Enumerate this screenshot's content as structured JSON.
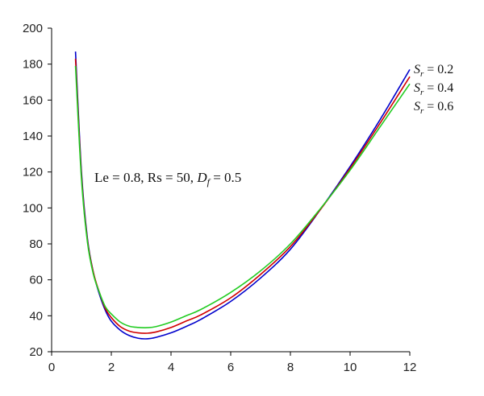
{
  "chart_data": {
    "type": "line",
    "title": "",
    "xlabel": "",
    "ylabel": "",
    "xlim": [
      0,
      12
    ],
    "ylim": [
      20,
      200
    ],
    "xticks": [
      0,
      2,
      4,
      6,
      8,
      10,
      12
    ],
    "yticks": [
      20,
      40,
      60,
      80,
      100,
      120,
      140,
      160,
      180,
      200
    ],
    "grid": false,
    "annotation": {
      "prefix": "Le = 0.8, Rs = 50, ",
      "var": "D",
      "sub": "f",
      "suffix": " = 0.5"
    },
    "series": [
      {
        "name": "Sr = 0.2",
        "label": {
          "var": "S",
          "sub": "r",
          "value": " = 0.2"
        },
        "color": "#0000cc",
        "x": [
          0.8,
          1.0,
          1.2,
          1.4,
          1.6,
          1.8,
          2.0,
          2.3,
          2.6,
          2.9,
          3.2,
          3.5,
          4.0,
          4.5,
          5.0,
          6.0,
          7.0,
          8.0,
          9.0,
          10.0,
          11.0,
          12.0
        ],
        "y": [
          187,
          120,
          83,
          64,
          52,
          43,
          37,
          32,
          29,
          27.5,
          27.2,
          28,
          30.5,
          34,
          38,
          48,
          61,
          77,
          99,
          123,
          149,
          177
        ]
      },
      {
        "name": "Sr = 0.4",
        "label": {
          "var": "S",
          "sub": "r",
          "value": " = 0.4"
        },
        "color": "#d00000",
        "x": [
          0.8,
          1.0,
          1.2,
          1.4,
          1.6,
          1.8,
          2.0,
          2.3,
          2.6,
          2.9,
          3.2,
          3.5,
          4.0,
          4.5,
          5.0,
          6.0,
          7.0,
          8.0,
          9.0,
          10.0,
          11.0,
          12.0
        ],
        "y": [
          183,
          118,
          82,
          64,
          53,
          44,
          39,
          34,
          31.5,
          30.5,
          30.3,
          31,
          33.5,
          37,
          40.5,
          50,
          63,
          78.5,
          99,
          122,
          147,
          173
        ]
      },
      {
        "name": "Sr = 0.6",
        "label": {
          "var": "S",
          "sub": "r",
          "value": " = 0.6"
        },
        "color": "#22cc22",
        "x": [
          0.8,
          1.0,
          1.2,
          1.4,
          1.6,
          1.8,
          2.0,
          2.3,
          2.6,
          2.9,
          3.2,
          3.5,
          4.0,
          4.5,
          5.0,
          6.0,
          7.0,
          8.0,
          9.0,
          10.0,
          11.0,
          12.0
        ],
        "y": [
          179,
          116,
          81,
          63,
          53,
          45,
          41,
          36.5,
          34.2,
          33.5,
          33.4,
          34,
          36.5,
          40,
          43.5,
          53,
          65,
          80,
          99.5,
          121,
          145,
          169
        ]
      }
    ]
  }
}
